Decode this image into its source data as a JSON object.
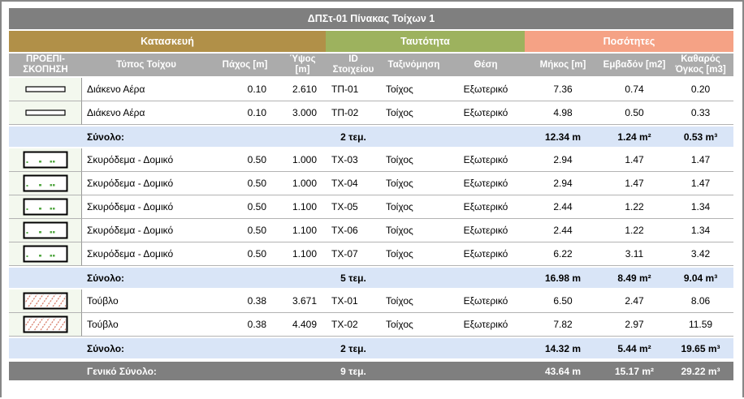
{
  "window": {
    "title": "ΔΠΣτ-01 Πίνακας Τοίχων 1"
  },
  "groups": [
    {
      "label": "Κατασκευή",
      "color": "#B19048"
    },
    {
      "label": "Ταυτότητα",
      "color": "#9DB25E"
    },
    {
      "label": "Ποσότητες",
      "color": "#F5A285"
    }
  ],
  "columns": [
    {
      "label": "ΠΡΟΕΠΙ-ΣΚΟΠΗΣΗ"
    },
    {
      "label": "Τύπος Τοίχου"
    },
    {
      "label": "Πάχος [m]"
    },
    {
      "label": "Ύψος [m]"
    },
    {
      "label": "ID Στοιχείου"
    },
    {
      "label": "Ταξινόμηση"
    },
    {
      "label": "Θέση"
    },
    {
      "label": "Μήκος [m]"
    },
    {
      "label": "Εμβαδόν [m2]"
    },
    {
      "label": "Καθαρός Όγκος [m3]"
    }
  ],
  "sections": [
    {
      "rows": [
        {
          "icon": "air-gap-preview-icon",
          "type": "Διάκενο Αέρα",
          "thickness": "0.10",
          "height": "2.610",
          "id": "ΤΠ-01",
          "classification": "Τοίχος",
          "position": "Εξωτερικό",
          "length": "7.36",
          "area": "0.74",
          "volume": "0.20"
        },
        {
          "icon": "air-gap-preview-icon",
          "type": "Διάκενο Αέρα",
          "thickness": "0.10",
          "height": "3.000",
          "id": "ΤΠ-02",
          "classification": "Τοίχος",
          "position": "Εξωτερικό",
          "length": "4.98",
          "area": "0.50",
          "volume": "0.33"
        }
      ],
      "subtotal": {
        "label": "Σύνολο:",
        "count": "2 τεμ.",
        "length": "12.34 m",
        "area": "1.24 m²",
        "volume": "0.53 m³"
      }
    },
    {
      "rows": [
        {
          "icon": "concrete-preview-icon",
          "type": "Σκυρόδεμα - Δομικό",
          "thickness": "0.50",
          "height": "1.000",
          "id": "ΤΧ-03",
          "classification": "Τοίχος",
          "position": "Εξωτερικό",
          "length": "2.94",
          "area": "1.47",
          "volume": "1.47"
        },
        {
          "icon": "concrete-preview-icon",
          "type": "Σκυρόδεμα - Δομικό",
          "thickness": "0.50",
          "height": "1.000",
          "id": "ΤΧ-04",
          "classification": "Τοίχος",
          "position": "Εξωτερικό",
          "length": "2.94",
          "area": "1.47",
          "volume": "1.47"
        },
        {
          "icon": "concrete-preview-icon",
          "type": "Σκυρόδεμα - Δομικό",
          "thickness": "0.50",
          "height": "1.100",
          "id": "ΤΧ-05",
          "classification": "Τοίχος",
          "position": "Εξωτερικό",
          "length": "2.44",
          "area": "1.22",
          "volume": "1.34"
        },
        {
          "icon": "concrete-preview-icon",
          "type": "Σκυρόδεμα - Δομικό",
          "thickness": "0.50",
          "height": "1.100",
          "id": "ΤΧ-06",
          "classification": "Τοίχος",
          "position": "Εξωτερικό",
          "length": "2.44",
          "area": "1.22",
          "volume": "1.34"
        },
        {
          "icon": "concrete-preview-icon",
          "type": "Σκυρόδεμα - Δομικό",
          "thickness": "0.50",
          "height": "1.100",
          "id": "ΤΧ-07",
          "classification": "Τοίχος",
          "position": "Εξωτερικό",
          "length": "6.22",
          "area": "3.11",
          "volume": "3.42"
        }
      ],
      "subtotal": {
        "label": "Σύνολο:",
        "count": "5 τεμ.",
        "length": "16.98 m",
        "area": "8.49 m²",
        "volume": "9.04 m³"
      }
    },
    {
      "rows": [
        {
          "icon": "brick-preview-icon",
          "type": "Τούβλο",
          "thickness": "0.38",
          "height": "3.671",
          "id": "ΤΧ-01",
          "classification": "Τοίχος",
          "position": "Εξωτερικό",
          "length": "6.50",
          "area": "2.47",
          "volume": "8.06"
        },
        {
          "icon": "brick-preview-icon",
          "type": "Τούβλο",
          "thickness": "0.38",
          "height": "4.409",
          "id": "ΤΧ-02",
          "classification": "Τοίχος",
          "position": "Εξωτερικό",
          "length": "7.82",
          "area": "2.97",
          "volume": "11.59"
        }
      ],
      "subtotal": {
        "label": "Σύνολο:",
        "count": "2 τεμ.",
        "length": "14.32 m",
        "area": "5.44 m²",
        "volume": "19.65 m³"
      }
    }
  ],
  "grand_total": {
    "label": "Γενικό Σύνολο:",
    "count": "9 τεμ.",
    "length": "43.64 m",
    "area": "15.17 m²",
    "volume": "29.22 m³"
  },
  "colors": {
    "title_bar": "#7F7F7F",
    "group_construction": "#B19048",
    "group_identity": "#9DB25E",
    "group_quantities": "#F5A285",
    "column_header": "#ABABAB",
    "subtotal_row": "#D9E5F7",
    "grand_total_row": "#7F7F7F",
    "preview_cell_bg": "#F3F8EE",
    "row_separator": "#B3B3B3",
    "window_border": "#878787",
    "hatch_red": "#D9826F",
    "speck_green": "#55A845"
  }
}
